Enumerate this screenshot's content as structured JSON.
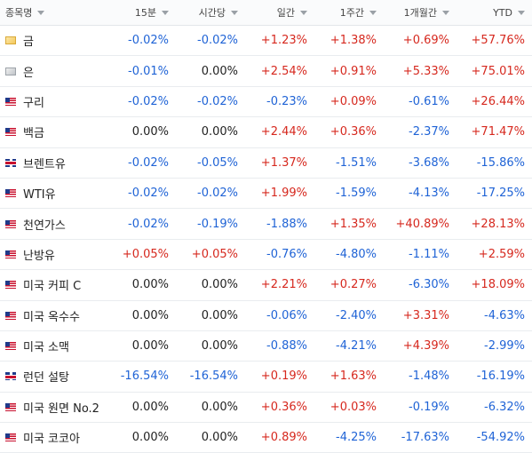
{
  "columns": [
    "종목명",
    "15분",
    "시간당",
    "일간",
    "1주간",
    "1개월간",
    "YTD"
  ],
  "rows": [
    {
      "name": "금",
      "icon": "gold-icon",
      "values": [
        "-0.02%",
        "-0.02%",
        "+1.23%",
        "+1.38%",
        "+0.69%",
        "+57.76%"
      ]
    },
    {
      "name": "은",
      "icon": "silver-icon",
      "values": [
        "-0.01%",
        "0.00%",
        "+2.54%",
        "+0.91%",
        "+5.33%",
        "+75.01%"
      ]
    },
    {
      "name": "구리",
      "icon": "us-flag-icon",
      "values": [
        "-0.02%",
        "-0.02%",
        "-0.23%",
        "+0.09%",
        "-0.61%",
        "+26.44%"
      ]
    },
    {
      "name": "백금",
      "icon": "us-flag-icon",
      "values": [
        "0.00%",
        "0.00%",
        "+2.44%",
        "+0.36%",
        "-2.37%",
        "+71.47%"
      ]
    },
    {
      "name": "브렌트유",
      "icon": "uk-flag-icon",
      "values": [
        "-0.02%",
        "-0.05%",
        "+1.37%",
        "-1.51%",
        "-3.68%",
        "-15.86%"
      ]
    },
    {
      "name": "WTI유",
      "icon": "us-flag-icon",
      "values": [
        "-0.02%",
        "-0.02%",
        "+1.99%",
        "-1.59%",
        "-4.13%",
        "-17.25%"
      ]
    },
    {
      "name": "천연가스",
      "icon": "us-flag-icon",
      "values": [
        "-0.02%",
        "-0.19%",
        "-1.88%",
        "+1.35%",
        "+40.89%",
        "+28.13%"
      ]
    },
    {
      "name": "난방유",
      "icon": "us-flag-icon",
      "values": [
        "+0.05%",
        "+0.05%",
        "-0.76%",
        "-4.80%",
        "-1.11%",
        "+2.59%"
      ]
    },
    {
      "name": "미국 커피 C",
      "icon": "us-flag-icon",
      "values": [
        "0.00%",
        "0.00%",
        "+2.21%",
        "+0.27%",
        "-6.30%",
        "+18.09%"
      ]
    },
    {
      "name": "미국 옥수수",
      "icon": "us-flag-icon",
      "values": [
        "0.00%",
        "0.00%",
        "-0.06%",
        "-2.40%",
        "+3.31%",
        "-4.63%"
      ]
    },
    {
      "name": "미국 소맥",
      "icon": "us-flag-icon",
      "values": [
        "0.00%",
        "0.00%",
        "-0.88%",
        "-4.21%",
        "+4.39%",
        "-2.99%"
      ]
    },
    {
      "name": "런던 설탕",
      "icon": "uk-flag-icon",
      "values": [
        "-16.54%",
        "-16.54%",
        "+0.19%",
        "+1.63%",
        "-1.48%",
        "-16.19%"
      ]
    },
    {
      "name": "미국 원면 No.2",
      "icon": "us-flag-icon",
      "values": [
        "0.00%",
        "0.00%",
        "+0.36%",
        "+0.03%",
        "-0.19%",
        "-6.32%"
      ]
    },
    {
      "name": "미국 코코아",
      "icon": "us-flag-icon",
      "values": [
        "0.00%",
        "0.00%",
        "+0.89%",
        "-4.25%",
        "-17.63%",
        "-54.92%"
      ]
    }
  ],
  "colors": {
    "positive": "#d6281e",
    "negative": "#1f63d6",
    "neutral": "#222222"
  }
}
